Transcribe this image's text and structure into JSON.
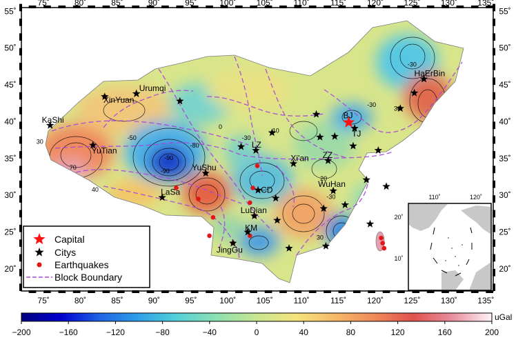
{
  "map": {
    "lon_ticks": [
      "75˚",
      "80˚",
      "85˚",
      "90˚",
      "95˚",
      "100˚",
      "105˚",
      "110˚",
      "115˚",
      "120˚",
      "125˚",
      "130˚",
      "135˚"
    ],
    "lat_ticks": [
      "20˚",
      "25˚",
      "30˚",
      "35˚",
      "40˚",
      "45˚",
      "50˚",
      "55˚"
    ],
    "cities": [
      {
        "label": "Urumqi",
        "lon": 87.6,
        "lat": 43.8,
        "dx": 4,
        "dy": -4
      },
      {
        "label": "XinYuan",
        "lon": 83.3,
        "lat": 43.4,
        "dx": -2,
        "dy": 9
      },
      {
        "label": "KaShi",
        "lon": 75.9,
        "lat": 39.5,
        "dx": -12,
        "dy": -4
      },
      {
        "label": "YuTian",
        "lon": 81.7,
        "lat": 36.8,
        "dx": -2,
        "dy": 12
      },
      {
        "label": "YuShu",
        "lon": 97.0,
        "lat": 33.0,
        "dx": -20,
        "dy": -4
      },
      {
        "label": "LaSa",
        "lon": 91.1,
        "lat": 29.7,
        "dx": -2,
        "dy": -4
      },
      {
        "label": "LZ",
        "lon": 103.8,
        "lat": 36.1,
        "dx": -6,
        "dy": -4
      },
      {
        "label": "Xi'an",
        "lon": 108.9,
        "lat": 34.3,
        "dx": -4,
        "dy": -4
      },
      {
        "label": "CD",
        "lon": 104.1,
        "lat": 30.7,
        "dx": 4,
        "dy": 4
      },
      {
        "label": "LuDian",
        "lon": 103.6,
        "lat": 27.2,
        "dx": -20,
        "dy": -4
      },
      {
        "label": "KM",
        "lon": 102.7,
        "lat": 25.0,
        "dx": -4,
        "dy": -2
      },
      {
        "label": "JingGu",
        "lon": 100.7,
        "lat": 23.5,
        "dx": -24,
        "dy": 14
      },
      {
        "label": "BJ",
        "lon": 116.4,
        "lat": 39.9,
        "dx": -8,
        "dy": -6
      },
      {
        "label": "TJ",
        "lon": 117.2,
        "lat": 39.1,
        "dx": -4,
        "dy": 12
      },
      {
        "label": "ZZ",
        "lon": 113.6,
        "lat": 34.7,
        "dx": -8,
        "dy": -4
      },
      {
        "label": "WuHan",
        "lon": 114.3,
        "lat": 30.6,
        "dx": -22,
        "dy": -6
      },
      {
        "label": "HaErBin",
        "lon": 126.6,
        "lat": 45.8,
        "dx": -14,
        "dy": -4
      }
    ],
    "unlabeled_cities": [
      {
        "lon": 112.0,
        "lat": 41.0
      },
      {
        "lon": 106.0,
        "lat": 38.5
      },
      {
        "lon": 101.8,
        "lat": 36.6
      },
      {
        "lon": 114.5,
        "lat": 38.0
      },
      {
        "lon": 112.5,
        "lat": 37.9
      },
      {
        "lon": 117.0,
        "lat": 36.7
      },
      {
        "lon": 120.4,
        "lat": 36.1
      },
      {
        "lon": 118.8,
        "lat": 32.1
      },
      {
        "lon": 121.5,
        "lat": 31.2
      },
      {
        "lon": 106.5,
        "lat": 29.6
      },
      {
        "lon": 106.7,
        "lat": 26.6
      },
      {
        "lon": 108.3,
        "lat": 22.8
      },
      {
        "lon": 113.3,
        "lat": 23.1
      },
      {
        "lon": 113.0,
        "lat": 28.2
      },
      {
        "lon": 115.9,
        "lat": 28.7
      },
      {
        "lon": 119.3,
        "lat": 26.1
      },
      {
        "lon": 123.4,
        "lat": 41.8
      },
      {
        "lon": 125.3,
        "lat": 43.9
      },
      {
        "lon": 87.6,
        "lat": 43.8
      },
      {
        "lon": 93.5,
        "lat": 42.8
      }
    ],
    "earthquakes": [
      {
        "lon": 83.3,
        "lat": 43.4
      },
      {
        "lon": 81.7,
        "lat": 36.8
      },
      {
        "lon": 93.0,
        "lat": 31.0
      },
      {
        "lon": 97.0,
        "lat": 33.0
      },
      {
        "lon": 96.0,
        "lat": 29.5
      },
      {
        "lon": 98.0,
        "lat": 27.0
      },
      {
        "lon": 103.4,
        "lat": 31.0
      },
      {
        "lon": 103.0,
        "lat": 29.0
      },
      {
        "lon": 104.0,
        "lat": 34.0
      },
      {
        "lon": 103.6,
        "lat": 27.2
      },
      {
        "lon": 97.5,
        "lat": 24.5
      },
      {
        "lon": 100.7,
        "lat": 23.5
      },
      {
        "lon": 103.0,
        "lat": 24.5
      },
      {
        "lon": 120.8,
        "lat": 24.2
      },
      {
        "lon": 121.0,
        "lat": 23.5
      },
      {
        "lon": 121.2,
        "lat": 22.8
      }
    ],
    "contour_labels": [
      {
        "text": "-90",
        "lon": 91.5,
        "lat": 33.0
      },
      {
        "text": "-90",
        "lon": 92.0,
        "lat": 34.8
      },
      {
        "text": "-50",
        "lon": 87.0,
        "lat": 37.5
      },
      {
        "text": "-80",
        "lon": 95.5,
        "lat": 36.5
      },
      {
        "text": "-30",
        "lon": 102.5,
        "lat": 37.5
      },
      {
        "text": "10",
        "lon": 106.5,
        "lat": 38.5
      },
      {
        "text": "0",
        "lon": 99.0,
        "lat": 39.0
      },
      {
        "text": "70",
        "lon": 79.0,
        "lat": 33.5
      },
      {
        "text": "40",
        "lon": 82.0,
        "lat": 30.5
      },
      {
        "text": "30",
        "lon": 74.5,
        "lat": 37.0
      },
      {
        "text": "-30",
        "lon": 119.5,
        "lat": 42.0
      },
      {
        "text": "-30",
        "lon": 125.0,
        "lat": 47.5
      },
      {
        "text": "30",
        "lon": 123.0,
        "lat": 41.5
      },
      {
        "text": "-30",
        "lon": 114.0,
        "lat": 29.5
      },
      {
        "text": "30",
        "lon": 112.5,
        "lat": 24.0
      },
      {
        "text": "20",
        "lon": 113.0,
        "lat": 32.0
      }
    ],
    "legend": {
      "capital": "Capital",
      "citys": "Citys",
      "earthquakes": "Earthquakes",
      "boundary": "Block Boundary"
    },
    "inset": {
      "lon_ticks": [
        "110˚",
        "120˚"
      ],
      "lat_ticks": [
        "20˚",
        "10˚"
      ]
    }
  },
  "colorbar": {
    "unit": "uGal",
    "ticks": [
      "−200",
      "−160",
      "−120",
      "−80",
      "−40",
      "0",
      "40",
      "80",
      "120",
      "160",
      "200"
    ],
    "stops": [
      "#000080",
      "#0000cd",
      "#1e64e6",
      "#2fa0e8",
      "#55d2d8",
      "#8ee0b0",
      "#c8e690",
      "#f5e47c",
      "#f5b968",
      "#f08a5a",
      "#e0524d",
      "#e890a0",
      "#fff4f6"
    ]
  },
  "colors": {
    "capital": "#ff1010",
    "earthquake": "#e01818",
    "boundary": "#a64ad9",
    "city": "#000000"
  }
}
